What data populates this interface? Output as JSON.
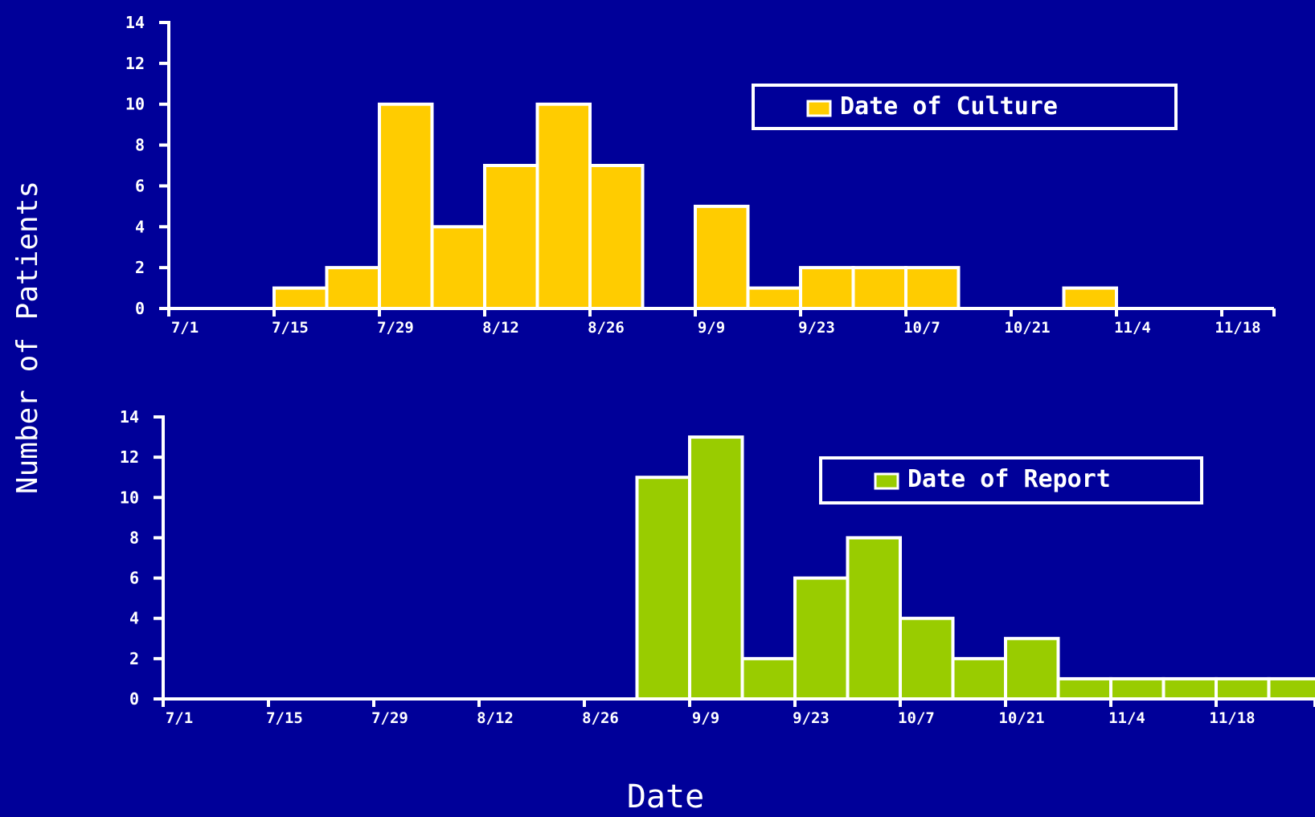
{
  "figure": {
    "ylabel": "Number of Patients",
    "xlabel": "Date",
    "background": "#000099",
    "axis_color": "#ffffff"
  },
  "chart_data": [
    {
      "type": "bar",
      "series": [
        {
          "name": "Date of Culture",
          "color": "#ffcc00",
          "bins": [
            {
              "start": "7/15",
              "end": "7/22",
              "value": 1
            },
            {
              "start": "7/22",
              "end": "7/29",
              "value": 2
            },
            {
              "start": "7/29",
              "end": "8/5",
              "value": 10
            },
            {
              "start": "8/5",
              "end": "8/12",
              "value": 4
            },
            {
              "start": "8/12",
              "end": "8/19",
              "value": 7
            },
            {
              "start": "8/19",
              "end": "8/26",
              "value": 10
            },
            {
              "start": "8/26",
              "end": "9/2",
              "value": 7
            },
            {
              "start": "9/9",
              "end": "9/16",
              "value": 5
            },
            {
              "start": "9/16",
              "end": "9/23",
              "value": 1
            },
            {
              "start": "9/23",
              "end": "9/30",
              "value": 2
            },
            {
              "start": "9/30",
              "end": "10/7",
              "value": 2
            },
            {
              "start": "10/7",
              "end": "10/14",
              "value": 2
            },
            {
              "start": "10/28",
              "end": "11/4",
              "value": 1
            }
          ]
        }
      ],
      "x_ticks": [
        "7/1",
        "7/15",
        "7/29",
        "8/12",
        "8/26",
        "9/9",
        "9/23",
        "10/7",
        "10/21",
        "11/4",
        "11/18"
      ],
      "ylim": [
        0,
        14
      ],
      "y_ticks": [
        0,
        2,
        4,
        6,
        8,
        10,
        12,
        14
      ],
      "legend": "top-right"
    },
    {
      "type": "bar",
      "series": [
        {
          "name": "Date of Report",
          "color": "#99cc00",
          "bins": [
            {
              "start": "9/2",
              "end": "9/9",
              "value": 11
            },
            {
              "start": "9/9",
              "end": "9/16",
              "value": 13
            },
            {
              "start": "9/16",
              "end": "9/23",
              "value": 2
            },
            {
              "start": "9/23",
              "end": "9/30",
              "value": 6
            },
            {
              "start": "9/30",
              "end": "10/7",
              "value": 8
            },
            {
              "start": "10/7",
              "end": "10/14",
              "value": 4
            },
            {
              "start": "10/14",
              "end": "10/21",
              "value": 2
            },
            {
              "start": "10/21",
              "end": "10/28",
              "value": 3
            },
            {
              "start": "10/28",
              "end": "11/4",
              "value": 1
            },
            {
              "start": "11/4",
              "end": "11/11",
              "value": 1
            },
            {
              "start": "11/11",
              "end": "11/18",
              "value": 1
            },
            {
              "start": "11/18",
              "end": "11/25",
              "value": 1
            },
            {
              "start": "11/25",
              "end": "12/2",
              "value": 1
            }
          ]
        }
      ],
      "x_ticks": [
        "7/1",
        "7/15",
        "7/29",
        "8/12",
        "8/26",
        "9/9",
        "9/23",
        "10/7",
        "10/21",
        "11/4",
        "11/18"
      ],
      "ylim": [
        0,
        14
      ],
      "y_ticks": [
        0,
        2,
        4,
        6,
        8,
        10,
        12,
        14
      ],
      "legend": "top-right"
    }
  ]
}
